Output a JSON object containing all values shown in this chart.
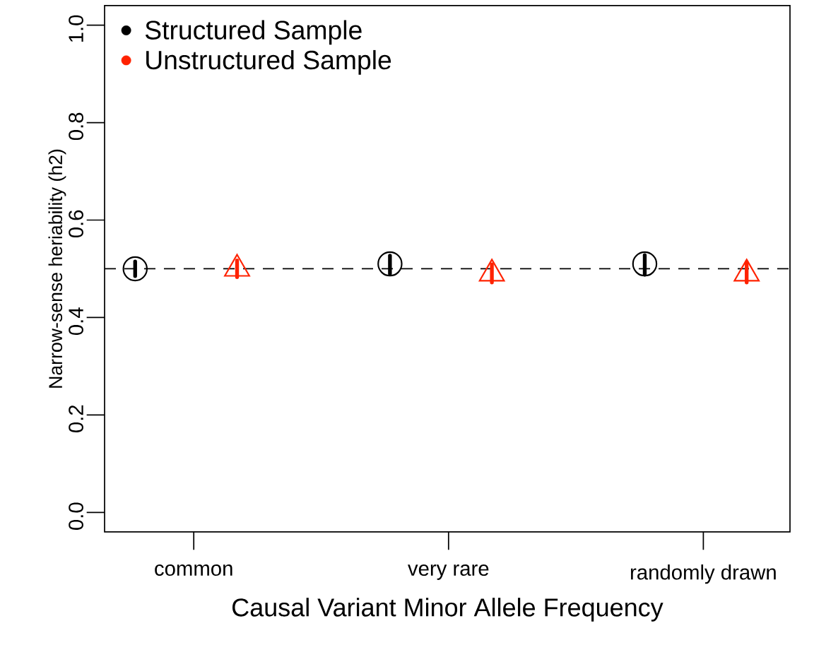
{
  "chart_data": {
    "type": "scatter",
    "xlabel": "Causal Variant Minor Allele Frequency",
    "ylabel": "Narrow-sense heriability (h2)",
    "categories": [
      "common",
      "very rare",
      "randomly drawn"
    ],
    "ylim": [
      -0.04,
      1.04
    ],
    "yticks": [
      {
        "value": 0,
        "label": "0.0"
      },
      {
        "value": 0.2,
        "label": "0.2"
      },
      {
        "value": 0.4,
        "label": "0.4"
      },
      {
        "value": 0.6,
        "label": "0.6"
      },
      {
        "value": 0.8,
        "label": "0.8"
      },
      {
        "value": 1,
        "label": "1.0"
      }
    ],
    "series": [
      {
        "name": "Structured Sample",
        "color": "#000000",
        "marker": "circle",
        "values": [
          0.5,
          0.51,
          0.51
        ],
        "errors": [
          [
            0.485,
            0.515
          ],
          [
            0.49,
            0.527
          ],
          [
            0.488,
            0.528
          ]
        ]
      },
      {
        "name": "Unstructured Sample",
        "color": "#ff2200",
        "marker": "triangle",
        "values": [
          0.5,
          0.49,
          0.49
        ],
        "errors": [
          [
            0.483,
            0.517
          ],
          [
            0.472,
            0.509
          ],
          [
            0.472,
            0.514
          ]
        ]
      }
    ],
    "ref_lines": [
      {
        "axis": "y",
        "value": 0.5,
        "line_style": "dashed",
        "color": "#000000"
      }
    ],
    "legend": "top left"
  }
}
